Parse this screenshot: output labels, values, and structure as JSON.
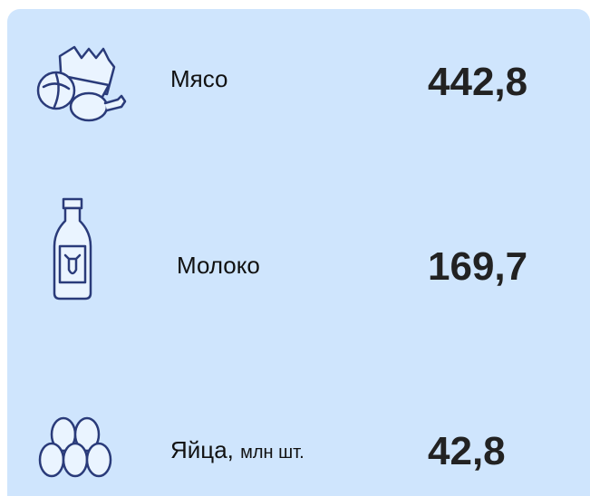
{
  "items": [
    {
      "label": "Мясо",
      "value": "442,8"
    },
    {
      "label": "Молоко",
      "value": "169,7"
    },
    {
      "label": "Яйца,",
      "unit": "млн шт.",
      "value": "42,8"
    }
  ]
}
